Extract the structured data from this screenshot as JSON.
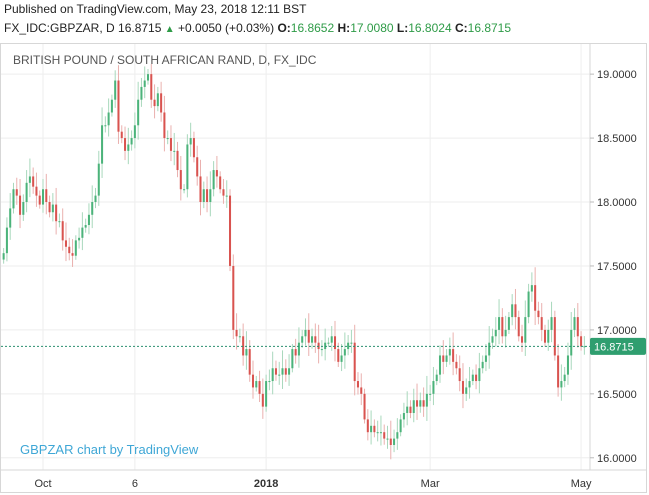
{
  "header": {
    "published": "Published on TradingView.com, May 23, 2018 12:11 BST",
    "symbol": "FX_IDC:GBPZAR, D",
    "last": "16.8715",
    "change_arrow": "▲",
    "change": "+0.0050 (+0.03%)",
    "open_label": "O:",
    "open": "16.8652",
    "high_label": "H:",
    "high": "17.0080",
    "low_label": "L:",
    "low": "16.8024",
    "close_label": "C:",
    "close": "16.8715"
  },
  "colors": {
    "up": "#4bb37a",
    "down": "#d9534f",
    "last_line": "#2a8f6f",
    "badge": "#2f9e6f"
  },
  "chart_data": {
    "type": "candlestick",
    "title": "BRITISH POUND / SOUTH AFRICAN RAND, D, FX_IDC",
    "watermark": "GBPZAR chart by TradingView",
    "x_ticks": [
      {
        "label": "Oct",
        "bar": 12
      },
      {
        "label": "6",
        "bar": 40
      },
      {
        "label": "2018",
        "bar": 80
      },
      {
        "label": "Mar",
        "bar": 130
      },
      {
        "label": "May",
        "bar": 176
      }
    ],
    "y_ticks": [
      {
        "label": "19.0000",
        "value": 19.0
      },
      {
        "label": "18.5000",
        "value": 18.5
      },
      {
        "label": "18.0000",
        "value": 18.0
      },
      {
        "label": "17.5000",
        "value": 17.5
      },
      {
        "label": "17.0000",
        "value": 17.0
      },
      {
        "label": "16.5000",
        "value": 16.5
      },
      {
        "label": "16.0000",
        "value": 16.0
      }
    ],
    "ylim": [
      15.92,
      19.22
    ],
    "last_price": 16.8715,
    "last_price_label": "16.8715",
    "closes": [
      17.6,
      17.8,
      17.95,
      18.1,
      18.05,
      17.9,
      18.0,
      18.15,
      18.2,
      18.12,
      18.05,
      17.98,
      18.1,
      18.0,
      17.92,
      17.98,
      17.85,
      17.85,
      17.7,
      17.65,
      17.6,
      17.58,
      17.7,
      17.72,
      17.8,
      17.82,
      17.9,
      18.0,
      18.05,
      18.3,
      18.6,
      18.6,
      18.7,
      18.8,
      18.95,
      18.55,
      18.5,
      18.4,
      18.45,
      18.5,
      18.6,
      18.8,
      18.9,
      18.95,
      19.0,
      18.8,
      18.75,
      18.85,
      18.7,
      18.5,
      18.5,
      18.4,
      18.4,
      18.25,
      18.1,
      18.1,
      18.45,
      18.5,
      18.35,
      18.2,
      18.0,
      18.1,
      18.0,
      18.1,
      18.25,
      18.2,
      18.1,
      18.05,
      18.05,
      17.5,
      17.0,
      16.95,
      16.95,
      16.8,
      16.85,
      16.65,
      16.55,
      16.6,
      16.5,
      16.4,
      16.6,
      16.6,
      16.7,
      16.65,
      16.65,
      16.7,
      16.65,
      16.7,
      16.85,
      16.8,
      16.9,
      16.95,
      17.0,
      16.9,
      16.95,
      16.9,
      16.85,
      16.85,
      16.9,
      16.9,
      16.95,
      16.85,
      16.75,
      16.8,
      16.85,
      16.9,
      16.9,
      16.6,
      16.55,
      16.5,
      16.3,
      16.2,
      16.25,
      16.2,
      16.2,
      16.2,
      16.15,
      16.15,
      16.1,
      16.15,
      16.2,
      16.3,
      16.35,
      16.4,
      16.35,
      16.45,
      16.4,
      16.45,
      16.4,
      16.5,
      16.5,
      16.6,
      16.65,
      16.8,
      16.75,
      16.8,
      16.85,
      16.75,
      16.7,
      16.6,
      16.5,
      16.55,
      16.6,
      16.65,
      16.6,
      16.7,
      16.75,
      16.8,
      16.9,
      16.95,
      17.0,
      17.1,
      16.95,
      17.0,
      17.1,
      17.2,
      17.1,
      16.95,
      16.9,
      17.1,
      17.3,
      17.35,
      17.15,
      17.1,
      17.0,
      16.9,
      17.0,
      17.1,
      16.8,
      16.55,
      16.6,
      16.65,
      16.8,
      17.0,
      17.1,
      16.95,
      16.87,
      16.8715
    ]
  }
}
